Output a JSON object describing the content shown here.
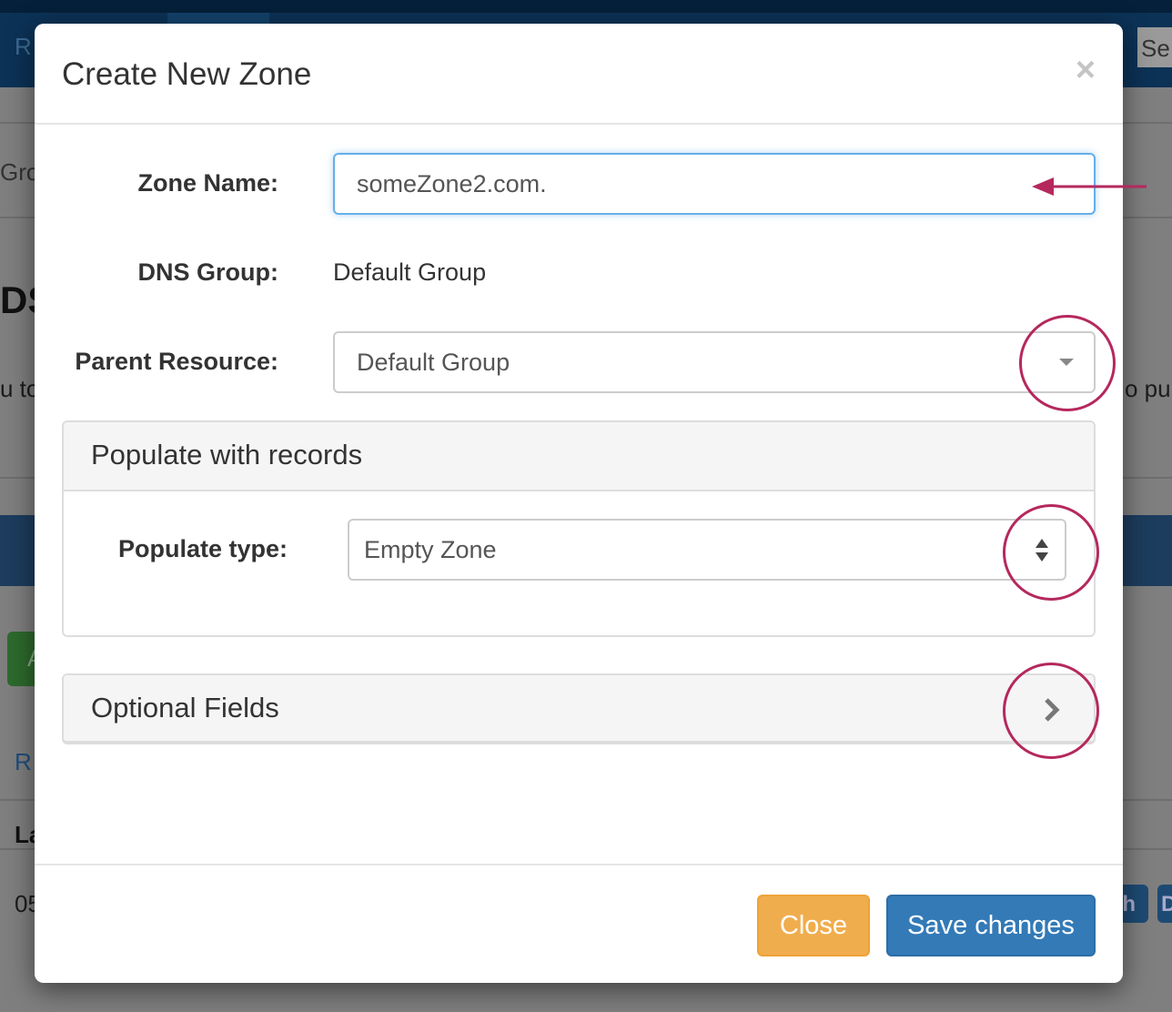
{
  "background": {
    "nav_left": "R",
    "search": "Se",
    "tab_fragment": "Gro",
    "heading_fragment": "DS",
    "text_left": "u to",
    "text_right": "o pu",
    "green_btn": "A",
    "link": "R",
    "col_header": "La",
    "row_value": "05",
    "btn1": "sh",
    "btn2": "D"
  },
  "modal": {
    "title": "Create New Zone",
    "close_icon": "close-icon",
    "zone_name": {
      "label": "Zone Name:",
      "value": "someZone2.com."
    },
    "dns_group": {
      "label": "DNS Group:",
      "value": "Default Group"
    },
    "parent_resource": {
      "label": "Parent Resource:",
      "value": "Default Group"
    },
    "populate_panel": {
      "title": "Populate with records",
      "type_label": "Populate type:",
      "type_value": "Empty Zone"
    },
    "optional_panel": {
      "title": "Optional Fields"
    },
    "footer": {
      "close": "Close",
      "save": "Save changes"
    }
  },
  "colors": {
    "annotation": "#b5285d",
    "close_button": "#f0ad4e",
    "save_button": "#337ab7"
  }
}
